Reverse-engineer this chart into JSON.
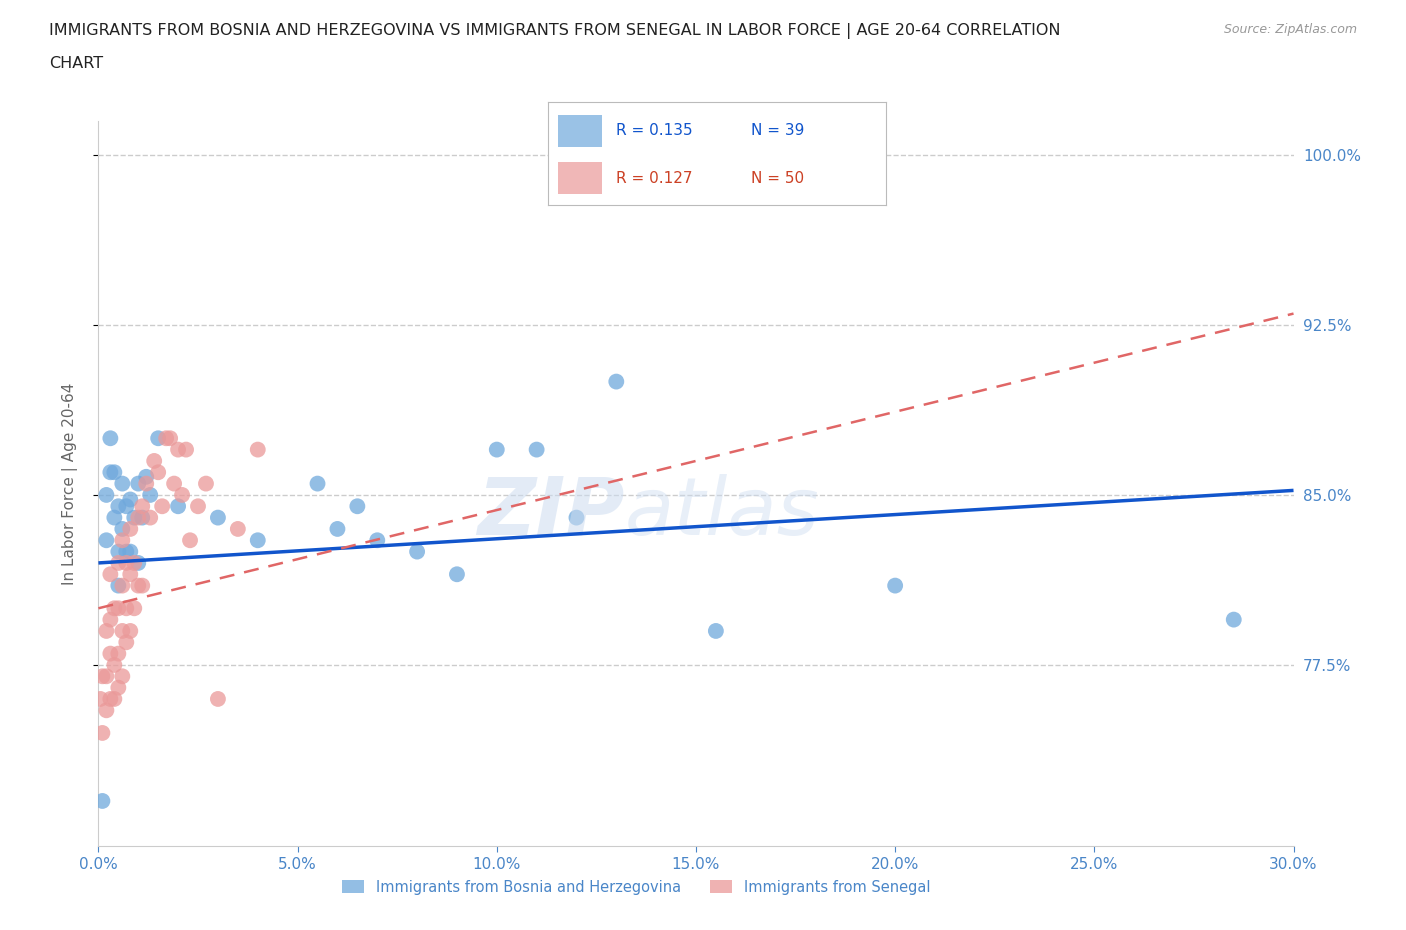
{
  "title_line1": "IMMIGRANTS FROM BOSNIA AND HERZEGOVINA VS IMMIGRANTS FROM SENEGAL IN LABOR FORCE | AGE 20-64 CORRELATION",
  "title_line2": "CHART",
  "source": "Source: ZipAtlas.com",
  "ylabel": "In Labor Force | Age 20-64",
  "xlim": [
    0.0,
    0.3
  ],
  "ylim": [
    0.695,
    1.015
  ],
  "yticks": [
    0.775,
    0.85,
    0.925,
    1.0
  ],
  "ytick_labels": [
    "77.5%",
    "85.0%",
    "92.5%",
    "100.0%"
  ],
  "xticks": [
    0.0,
    0.05,
    0.1,
    0.15,
    0.2,
    0.25,
    0.3
  ],
  "xtick_labels": [
    "0.0%",
    "5.0%",
    "10.0%",
    "15.0%",
    "20.0%",
    "25.0%",
    "30.0%"
  ],
  "R_bosnia": 0.135,
  "N_bosnia": 39,
  "R_senegal": 0.127,
  "N_senegal": 50,
  "color_bosnia": "#6fa8dc",
  "color_senegal": "#ea9999",
  "line_color_bosnia": "#1155cc",
  "line_color_senegal": "#cc4125",
  "line_dashed_color": "#e06666",
  "bosnia_x": [
    0.001,
    0.002,
    0.002,
    0.003,
    0.003,
    0.004,
    0.004,
    0.005,
    0.005,
    0.005,
    0.006,
    0.006,
    0.007,
    0.007,
    0.008,
    0.008,
    0.009,
    0.01,
    0.01,
    0.011,
    0.012,
    0.013,
    0.015,
    0.02,
    0.03,
    0.04,
    0.055,
    0.06,
    0.065,
    0.07,
    0.08,
    0.09,
    0.1,
    0.11,
    0.12,
    0.13,
    0.155,
    0.2,
    0.285
  ],
  "bosnia_y": [
    0.715,
    0.83,
    0.85,
    0.86,
    0.875,
    0.84,
    0.86,
    0.825,
    0.845,
    0.81,
    0.835,
    0.855,
    0.825,
    0.845,
    0.825,
    0.848,
    0.84,
    0.82,
    0.855,
    0.84,
    0.858,
    0.85,
    0.875,
    0.845,
    0.84,
    0.83,
    0.855,
    0.835,
    0.845,
    0.83,
    0.825,
    0.815,
    0.87,
    0.87,
    0.84,
    0.9,
    0.79,
    0.81,
    0.795
  ],
  "senegal_x": [
    0.0005,
    0.001,
    0.001,
    0.002,
    0.002,
    0.002,
    0.003,
    0.003,
    0.003,
    0.003,
    0.004,
    0.004,
    0.004,
    0.005,
    0.005,
    0.005,
    0.005,
    0.006,
    0.006,
    0.006,
    0.006,
    0.007,
    0.007,
    0.007,
    0.008,
    0.008,
    0.008,
    0.009,
    0.009,
    0.01,
    0.01,
    0.011,
    0.011,
    0.012,
    0.013,
    0.014,
    0.015,
    0.016,
    0.017,
    0.018,
    0.019,
    0.02,
    0.021,
    0.022,
    0.023,
    0.025,
    0.027,
    0.03,
    0.035,
    0.04
  ],
  "senegal_y": [
    0.76,
    0.745,
    0.77,
    0.755,
    0.77,
    0.79,
    0.76,
    0.78,
    0.795,
    0.815,
    0.76,
    0.775,
    0.8,
    0.765,
    0.78,
    0.8,
    0.82,
    0.77,
    0.79,
    0.81,
    0.83,
    0.785,
    0.8,
    0.82,
    0.79,
    0.815,
    0.835,
    0.8,
    0.82,
    0.81,
    0.84,
    0.81,
    0.845,
    0.855,
    0.84,
    0.865,
    0.86,
    0.845,
    0.875,
    0.875,
    0.855,
    0.87,
    0.85,
    0.87,
    0.83,
    0.845,
    0.855,
    0.76,
    0.835,
    0.87
  ],
  "grid_color": "#cccccc",
  "background_color": "#ffffff",
  "axis_color": "#4a86c8",
  "trendline_bosnia_x0": 0.0,
  "trendline_bosnia_y0": 0.82,
  "trendline_bosnia_x1": 0.3,
  "trendline_bosnia_y1": 0.852,
  "trendline_senegal_x0": 0.0,
  "trendline_senegal_y0": 0.8,
  "trendline_senegal_x1": 0.3,
  "trendline_senegal_y1": 0.93
}
